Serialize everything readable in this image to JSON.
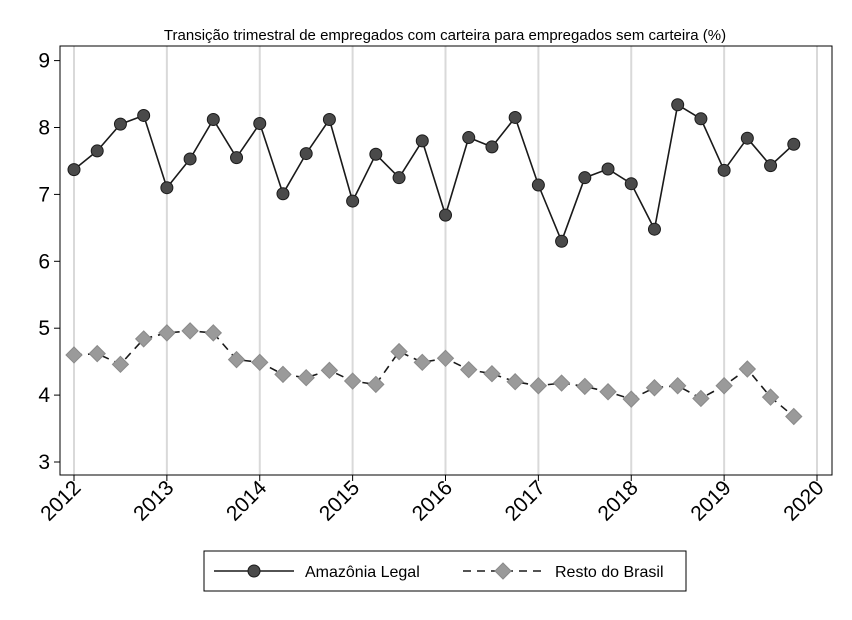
{
  "chart_data": {
    "type": "line",
    "title": "Transição trimestral de empregados com carteira para empregados sem carteira (%)",
    "xlabel": "",
    "ylabel": "",
    "xlim": [
      2012,
      2020
    ],
    "ylim": [
      2.8,
      9.2
    ],
    "x_ticks": [
      "2012",
      "2013",
      "2014",
      "2015",
      "2016",
      "2017",
      "2018",
      "2019",
      "2020"
    ],
    "y_ticks": [
      "3",
      "4",
      "5",
      "6",
      "7",
      "8",
      "9"
    ],
    "grid": "vertical",
    "legend_position": "bottom",
    "x": [
      2012.0,
      2012.25,
      2012.5,
      2012.75,
      2013.0,
      2013.25,
      2013.5,
      2013.75,
      2014.0,
      2014.25,
      2014.5,
      2014.75,
      2015.0,
      2015.25,
      2015.5,
      2015.75,
      2016.0,
      2016.25,
      2016.5,
      2016.75,
      2017.0,
      2017.25,
      2017.5,
      2017.75,
      2018.0,
      2018.25,
      2018.5,
      2018.75,
      2019.0,
      2019.25,
      2019.5,
      2019.75
    ],
    "series": [
      {
        "name": "Amazônia Legal",
        "color": "#1a1a1a",
        "marker": "circle",
        "dash": "solid",
        "values": [
          7.37,
          7.65,
          8.05,
          8.18,
          7.1,
          7.53,
          8.12,
          7.55,
          8.06,
          7.01,
          7.61,
          8.12,
          6.9,
          7.6,
          7.25,
          7.8,
          6.69,
          7.85,
          7.71,
          8.15,
          7.14,
          6.3,
          7.25,
          7.38,
          7.16,
          6.48,
          8.34,
          8.13,
          7.36,
          7.84,
          7.43,
          7.75
        ]
      },
      {
        "name": "Resto do Brasil",
        "color": "#9a9a9a",
        "marker": "diamond",
        "dash": "dashed",
        "values": [
          4.6,
          4.62,
          4.46,
          4.84,
          4.93,
          4.96,
          4.93,
          4.53,
          4.49,
          4.31,
          4.26,
          4.37,
          4.21,
          4.16,
          4.65,
          4.49,
          4.55,
          4.38,
          4.32,
          4.2,
          4.14,
          4.18,
          4.13,
          4.05,
          3.94,
          4.11,
          4.14,
          3.95,
          4.14,
          4.39,
          3.97,
          3.68
        ]
      }
    ]
  }
}
